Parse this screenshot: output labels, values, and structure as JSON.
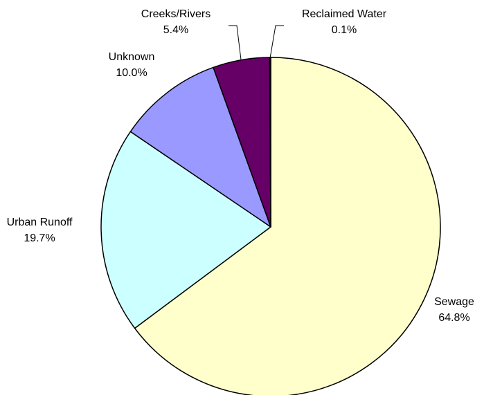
{
  "chart_data": {
    "type": "pie",
    "title": "",
    "slices": [
      {
        "label": "Sewage",
        "value": 64.8,
        "value_text": "64.8%",
        "color": "#FFFFCC"
      },
      {
        "label": "Urban Runoff",
        "value": 19.7,
        "value_text": "19.7%",
        "color": "#CCFFFF"
      },
      {
        "label": "Unknown",
        "value": 10.0,
        "value_text": "10.0%",
        "color": "#9999FF"
      },
      {
        "label": "Creeks/Rivers",
        "value": 5.4,
        "value_text": "5.4%",
        "color": "#660066"
      },
      {
        "label": "Reclaimed Water",
        "value": 0.1,
        "value_text": "0.1%",
        "color": "#FFFFCC"
      }
    ],
    "start": "top",
    "direction": "clockwise",
    "legend": "none",
    "data_labels": "category name and percentage",
    "outline_color": "#000000"
  }
}
